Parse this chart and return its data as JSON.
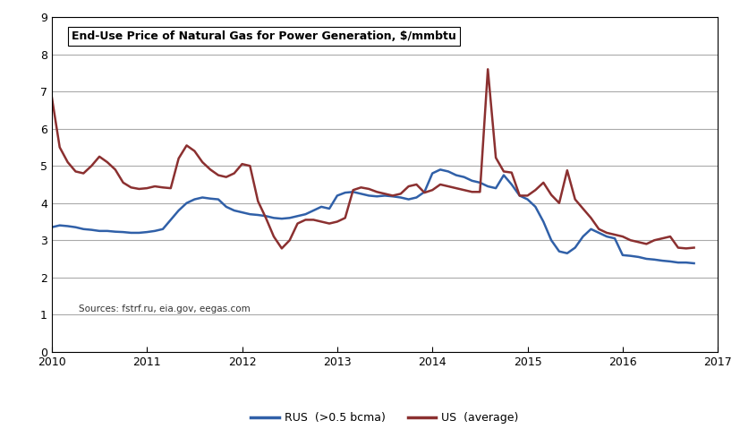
{
  "title": "End-Use Price of Natural Gas for Power Generation, $/mmbtu",
  "source_text": "Sources: fstrf.ru, eia.gov, eegas.com",
  "xlim": [
    2010,
    2017
  ],
  "ylim": [
    0,
    9
  ],
  "yticks": [
    0,
    1,
    2,
    3,
    4,
    5,
    6,
    7,
    8,
    9
  ],
  "xticks": [
    2010,
    2011,
    2012,
    2013,
    2014,
    2015,
    2016,
    2017
  ],
  "rus_color": "#3060A8",
  "us_color": "#8B3030",
  "rus_label": "RUS  (>0.5 bcma)",
  "us_label": "US  (average)",
  "background_color": "#FFFFFF",
  "grid_color": "#AAAAAA",
  "rus_x": [
    2010.0,
    2010.083,
    2010.167,
    2010.25,
    2010.333,
    2010.417,
    2010.5,
    2010.583,
    2010.667,
    2010.75,
    2010.833,
    2010.917,
    2011.0,
    2011.083,
    2011.167,
    2011.25,
    2011.333,
    2011.417,
    2011.5,
    2011.583,
    2011.667,
    2011.75,
    2011.833,
    2011.917,
    2012.0,
    2012.083,
    2012.167,
    2012.25,
    2012.333,
    2012.417,
    2012.5,
    2012.583,
    2012.667,
    2012.75,
    2012.833,
    2012.917,
    2013.0,
    2013.083,
    2013.167,
    2013.25,
    2013.333,
    2013.417,
    2013.5,
    2013.583,
    2013.667,
    2013.75,
    2013.833,
    2013.917,
    2014.0,
    2014.083,
    2014.167,
    2014.25,
    2014.333,
    2014.417,
    2014.5,
    2014.583,
    2014.667,
    2014.75,
    2014.833,
    2014.917,
    2015.0,
    2015.083,
    2015.167,
    2015.25,
    2015.333,
    2015.417,
    2015.5,
    2015.583,
    2015.667,
    2015.75,
    2015.833,
    2015.917,
    2016.0,
    2016.083,
    2016.167,
    2016.25,
    2016.333,
    2016.417,
    2016.5,
    2016.583,
    2016.667,
    2016.75
  ],
  "rus_y": [
    3.35,
    3.4,
    3.38,
    3.35,
    3.3,
    3.28,
    3.25,
    3.25,
    3.23,
    3.22,
    3.2,
    3.2,
    3.22,
    3.25,
    3.3,
    3.55,
    3.8,
    4.0,
    4.1,
    4.15,
    4.12,
    4.1,
    3.9,
    3.8,
    3.75,
    3.7,
    3.68,
    3.65,
    3.6,
    3.58,
    3.6,
    3.65,
    3.7,
    3.8,
    3.9,
    3.85,
    4.2,
    4.28,
    4.3,
    4.25,
    4.2,
    4.18,
    4.2,
    4.18,
    4.15,
    4.1,
    4.15,
    4.3,
    4.8,
    4.9,
    4.85,
    4.75,
    4.7,
    4.6,
    4.55,
    4.45,
    4.4,
    4.75,
    4.5,
    4.2,
    4.1,
    3.9,
    3.5,
    3.0,
    2.7,
    2.65,
    2.8,
    3.1,
    3.3,
    3.2,
    3.1,
    3.05,
    2.6,
    2.58,
    2.55,
    2.5,
    2.48,
    2.45,
    2.43,
    2.4,
    2.4,
    2.38
  ],
  "us_x": [
    2010.0,
    2010.083,
    2010.167,
    2010.25,
    2010.333,
    2010.417,
    2010.5,
    2010.583,
    2010.667,
    2010.75,
    2010.833,
    2010.917,
    2011.0,
    2011.083,
    2011.167,
    2011.25,
    2011.333,
    2011.417,
    2011.5,
    2011.583,
    2011.667,
    2011.75,
    2011.833,
    2011.917,
    2012.0,
    2012.083,
    2012.167,
    2012.25,
    2012.333,
    2012.417,
    2012.5,
    2012.583,
    2012.667,
    2012.75,
    2012.833,
    2012.917,
    2013.0,
    2013.083,
    2013.167,
    2013.25,
    2013.333,
    2013.417,
    2013.5,
    2013.583,
    2013.667,
    2013.75,
    2013.833,
    2013.917,
    2014.0,
    2014.083,
    2014.167,
    2014.25,
    2014.333,
    2014.417,
    2014.5,
    2014.583,
    2014.667,
    2014.75,
    2014.833,
    2014.917,
    2015.0,
    2015.083,
    2015.167,
    2015.25,
    2015.333,
    2015.417,
    2015.5,
    2015.583,
    2015.667,
    2015.75,
    2015.833,
    2015.917,
    2016.0,
    2016.083,
    2016.167,
    2016.25,
    2016.333,
    2016.417,
    2016.5,
    2016.583,
    2016.667,
    2016.75
  ],
  "us_y": [
    6.85,
    5.5,
    5.1,
    4.85,
    4.8,
    5.0,
    5.25,
    5.1,
    4.9,
    4.55,
    4.42,
    4.38,
    4.4,
    4.45,
    4.42,
    4.4,
    5.2,
    5.55,
    5.4,
    5.1,
    4.9,
    4.75,
    4.7,
    4.8,
    5.05,
    5.0,
    4.05,
    3.6,
    3.1,
    2.78,
    3.0,
    3.45,
    3.55,
    3.55,
    3.5,
    3.45,
    3.5,
    3.6,
    4.35,
    4.42,
    4.38,
    4.3,
    4.25,
    4.2,
    4.25,
    4.45,
    4.5,
    4.28,
    4.35,
    4.5,
    4.45,
    4.4,
    4.35,
    4.3,
    4.3,
    7.6,
    5.22,
    4.85,
    4.82,
    4.2,
    4.2,
    4.35,
    4.55,
    4.22,
    4.0,
    4.88,
    4.1,
    3.85,
    3.6,
    3.3,
    3.2,
    3.15,
    3.1,
    3.0,
    2.95,
    2.9,
    3.0,
    3.05,
    3.1,
    2.8,
    2.78,
    2.8
  ],
  "title_box_color": "#FFFFFF",
  "title_box_edge": "#000000",
  "spine_color": "#000000",
  "tick_fontsize": 9,
  "legend_fontsize": 9,
  "title_fontsize": 9
}
